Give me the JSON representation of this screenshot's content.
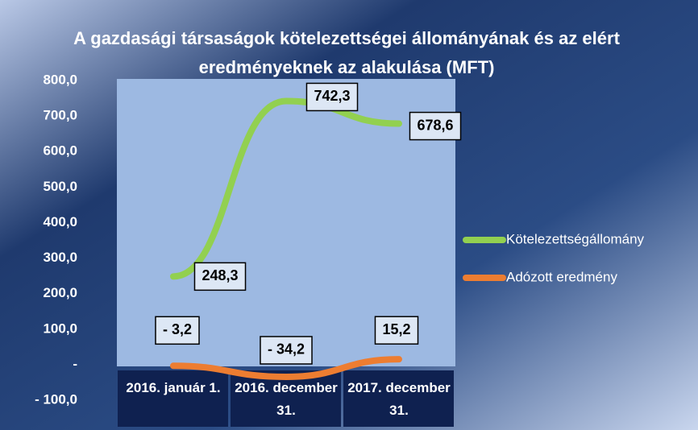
{
  "chart_data": {
    "type": "line",
    "title": "A gazdasági társaságok kötelezettségei állományának és az elért eredményeknek az alakulása (MFT)",
    "categories": [
      "2016. január 1.",
      "2016. december 31.",
      "2017. december 31."
    ],
    "series": [
      {
        "name": "Kötelezettségállomány",
        "color": "#92d050",
        "values": [
          248.3,
          742.3,
          678.6
        ],
        "value_labels": [
          "248,3",
          "742,3",
          "678,6"
        ]
      },
      {
        "name": "Adózott eredmény",
        "color": "#ed7d31",
        "values": [
          -3.2,
          -34.2,
          15.2
        ],
        "value_labels": [
          "- 3,2",
          "- 34,2",
          "15,2"
        ]
      }
    ],
    "ylim": [
      -100,
      800
    ],
    "yticks": [
      {
        "value": -100,
        "label": "- 100,0"
      },
      {
        "value": 0,
        "label": "-"
      },
      {
        "value": 100,
        "label": "100,0"
      },
      {
        "value": 200,
        "label": "200,0"
      },
      {
        "value": 300,
        "label": "300,0"
      },
      {
        "value": 400,
        "label": "400,0"
      },
      {
        "value": 500,
        "label": "500,0"
      },
      {
        "value": 600,
        "label": "600,0"
      },
      {
        "value": 700,
        "label": "700,0"
      },
      {
        "value": 800,
        "label": "800,0"
      }
    ],
    "legend": "right"
  }
}
